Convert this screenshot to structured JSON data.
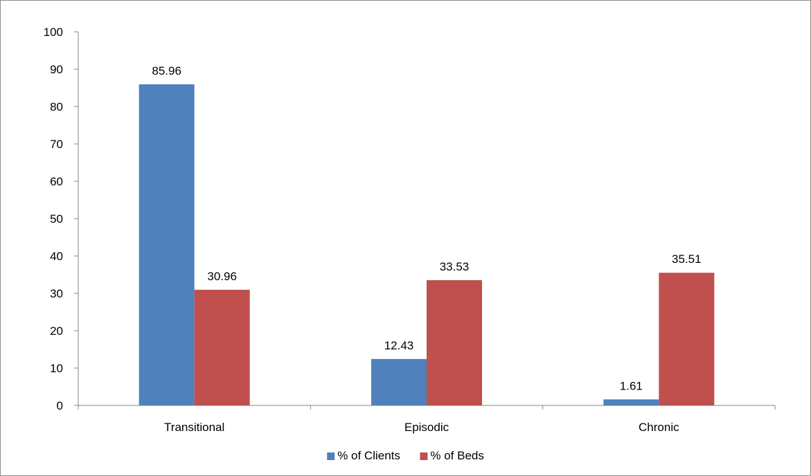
{
  "chart_data": {
    "type": "bar",
    "title": "",
    "xlabel": "",
    "ylabel": "",
    "categories": [
      "Transitional",
      "Episodic",
      "Chronic"
    ],
    "series": [
      {
        "name": "% of Clients",
        "values": [
          85.96,
          12.43,
          1.61
        ],
        "color": "#4f81bd"
      },
      {
        "name": "% of Beds",
        "values": [
          30.96,
          33.53,
          35.51
        ],
        "color": "#c0504d"
      }
    ],
    "ylim": [
      0,
      100
    ],
    "yticks": [
      0,
      10,
      20,
      30,
      40,
      50,
      60,
      70,
      80,
      90,
      100
    ],
    "data_labels": [
      [
        "85.96",
        "12.43",
        "1.61"
      ],
      [
        "30.96",
        "33.53",
        "35.51"
      ]
    ],
    "grid": false,
    "legend_position": "bottom"
  }
}
